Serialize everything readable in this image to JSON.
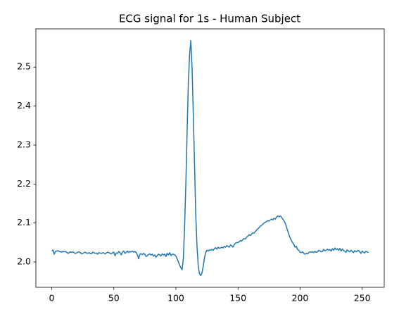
{
  "chart_data": {
    "type": "line",
    "title": "ECG signal for 1s - Human Subject",
    "x": [
      0,
      1,
      2,
      3,
      4,
      5,
      6,
      7,
      8,
      9,
      10,
      11,
      12,
      13,
      14,
      15,
      16,
      17,
      18,
      19,
      20,
      21,
      22,
      23,
      24,
      25,
      26,
      27,
      28,
      29,
      30,
      31,
      32,
      33,
      34,
      35,
      36,
      37,
      38,
      39,
      40,
      41,
      42,
      43,
      44,
      45,
      46,
      47,
      48,
      49,
      50,
      51,
      52,
      53,
      54,
      55,
      56,
      57,
      58,
      59,
      60,
      61,
      62,
      63,
      64,
      65,
      66,
      67,
      68,
      69,
      70,
      71,
      72,
      73,
      74,
      75,
      76,
      77,
      78,
      79,
      80,
      81,
      82,
      83,
      84,
      85,
      86,
      87,
      88,
      89,
      90,
      91,
      92,
      93,
      94,
      95,
      96,
      97,
      98,
      99,
      100,
      101,
      102,
      103,
      104,
      105,
      106,
      107,
      108,
      109,
      110,
      111,
      112,
      113,
      114,
      115,
      116,
      117,
      118,
      119,
      120,
      121,
      122,
      123,
      124,
      125,
      126,
      127,
      128,
      129,
      130,
      131,
      132,
      133,
      134,
      135,
      136,
      137,
      138,
      139,
      140,
      141,
      142,
      143,
      144,
      145,
      146,
      147,
      148,
      149,
      150,
      151,
      152,
      153,
      154,
      155,
      156,
      157,
      158,
      159,
      160,
      161,
      162,
      163,
      164,
      165,
      166,
      167,
      168,
      169,
      170,
      171,
      172,
      173,
      174,
      175,
      176,
      177,
      178,
      179,
      180,
      181,
      182,
      183,
      184,
      185,
      186,
      187,
      188,
      189,
      190,
      191,
      192,
      193,
      194,
      195,
      196,
      197,
      198,
      199,
      200,
      201,
      202,
      203,
      204,
      205,
      206,
      207,
      208,
      209,
      210,
      211,
      212,
      213,
      214,
      215,
      216,
      217,
      218,
      219,
      220,
      221,
      222,
      223,
      224,
      225,
      226,
      227,
      228,
      229,
      230,
      231,
      232,
      233,
      234,
      235,
      236,
      237,
      238,
      239,
      240,
      241,
      242,
      243,
      244,
      245,
      246,
      247,
      248,
      249,
      250,
      251,
      252,
      253,
      254,
      255
    ],
    "series": [
      {
        "color": "#1f77b4",
        "values": [
          2.028,
          2.031,
          2.02,
          2.027,
          2.028,
          2.029,
          2.027,
          2.026,
          2.025,
          2.027,
          2.026,
          2.027,
          2.025,
          2.022,
          2.024,
          2.026,
          2.025,
          2.026,
          2.024,
          2.022,
          2.023,
          2.025,
          2.026,
          2.024,
          2.021,
          2.022,
          2.024,
          2.025,
          2.023,
          2.022,
          2.024,
          2.022,
          2.021,
          2.025,
          2.024,
          2.022,
          2.023,
          2.02,
          2.024,
          2.023,
          2.022,
          2.024,
          2.023,
          2.021,
          2.023,
          2.025,
          2.024,
          2.022,
          2.021,
          2.024,
          2.025,
          2.016,
          2.023,
          2.022,
          2.027,
          2.024,
          2.018,
          2.026,
          2.028,
          2.022,
          2.025,
          2.028,
          2.024,
          2.027,
          2.026,
          2.028,
          2.025,
          2.027,
          2.024,
          2.018,
          2.008,
          2.02,
          2.021,
          2.019,
          2.022,
          2.02,
          2.014,
          2.016,
          2.019,
          2.021,
          2.018,
          2.02,
          2.015,
          2.018,
          2.012,
          2.017,
          2.02,
          2.018,
          2.015,
          2.021,
          2.018,
          2.02,
          2.014,
          2.022,
          2.018,
          2.024,
          2.016,
          2.02,
          2.02,
          2.018,
          2.015,
          2.008,
          2.0,
          1.992,
          1.985,
          1.98,
          2.01,
          2.09,
          2.2,
          2.33,
          2.46,
          2.53,
          2.568,
          2.5,
          2.38,
          2.25,
          2.12,
          2.04,
          1.99,
          1.97,
          1.965,
          1.972,
          1.99,
          2.01,
          2.025,
          2.03,
          2.028,
          2.031,
          2.03,
          2.032,
          2.03,
          2.034,
          2.037,
          2.033,
          2.038,
          2.035,
          2.036,
          2.038,
          2.036,
          2.04,
          2.038,
          2.042,
          2.04,
          2.038,
          2.044,
          2.041,
          2.038,
          2.045,
          2.048,
          2.05,
          2.05,
          2.052,
          2.055,
          2.054,
          2.058,
          2.06,
          2.059,
          2.064,
          2.066,
          2.07,
          2.068,
          2.072,
          2.075,
          2.074,
          2.078,
          2.082,
          2.085,
          2.088,
          2.092,
          2.094,
          2.097,
          2.1,
          2.102,
          2.104,
          2.106,
          2.105,
          2.108,
          2.11,
          2.108,
          2.112,
          2.11,
          2.115,
          2.118,
          2.116,
          2.118,
          2.115,
          2.11,
          2.106,
          2.1,
          2.09,
          2.08,
          2.07,
          2.062,
          2.055,
          2.05,
          2.044,
          2.038,
          2.04,
          2.032,
          2.03,
          2.025,
          2.024,
          2.026,
          2.022,
          2.02,
          2.022,
          2.021,
          2.024,
          2.026,
          2.025,
          2.026,
          2.024,
          2.027,
          2.025,
          2.026,
          2.03,
          2.028,
          2.026,
          2.027,
          2.032,
          2.029,
          2.03,
          2.033,
          2.03,
          2.032,
          2.028,
          2.034,
          2.03,
          2.036,
          2.032,
          2.034,
          2.03,
          2.035,
          2.028,
          2.033,
          2.03,
          2.027,
          2.025,
          2.031,
          2.028,
          2.026,
          2.03,
          2.027,
          2.024,
          2.029,
          2.026,
          2.028,
          2.03,
          2.026,
          2.022,
          2.028,
          2.025,
          2.023,
          2.027,
          2.026,
          2.024
        ]
      }
    ],
    "xlim": [
      -12.75,
      267.75
    ],
    "xticks": [
      0,
      50,
      100,
      150,
      200,
      250
    ],
    "ylim": [
      1.935,
      2.598
    ],
    "yticks": [
      {
        "value": 2.0,
        "label": "2.0"
      },
      2.1,
      2.2,
      2.3,
      2.4,
      2.5
    ]
  }
}
